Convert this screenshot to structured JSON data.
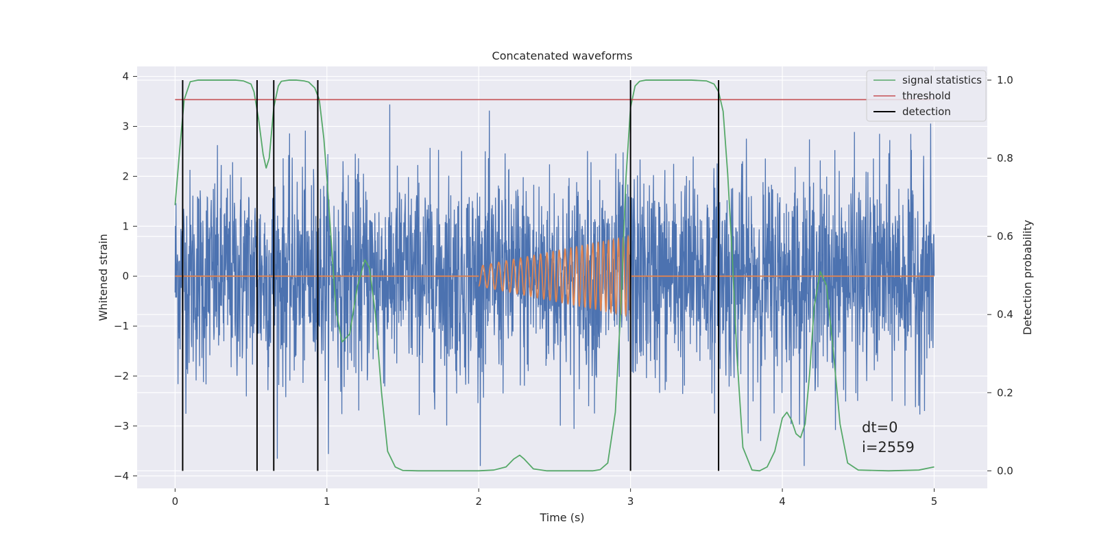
{
  "chart_data": {
    "type": "line",
    "title": "Concatenated waveforms",
    "xlabel": "Time (s)",
    "ylabel": "Whitened strain",
    "ylabel_right": "Detection probability",
    "xlim": [
      -0.25,
      5.35
    ],
    "ylim": [
      -4.25,
      4.2
    ],
    "ylim_right": [
      -0.045,
      1.035
    ],
    "x_ticks": [
      "0",
      "1",
      "2",
      "3",
      "4",
      "5"
    ],
    "y_ticks": [
      "4",
      "3",
      "2",
      "1",
      "0",
      "−1",
      "−2",
      "−3",
      "−4"
    ],
    "y_right_ticks": [
      "1.0",
      "0.8",
      "0.6",
      "0.4",
      "0.2",
      "0.0"
    ],
    "grid": true,
    "legend_position": "top-right",
    "legend": [
      "signal statistics",
      "threshold",
      "detection"
    ],
    "annotation": [
      "dt=0",
      "i=2559"
    ],
    "colors": {
      "strain": "#4c72b0",
      "template": "#dd8452",
      "signal_statistics": "#55a868",
      "threshold": "#c44e52",
      "detection": "#000000",
      "background": "#eaeaf2",
      "grid": "#ffffff"
    },
    "series": [
      {
        "name": "strain",
        "axis": "left",
        "x_range": [
          0,
          5
        ],
        "amplitude_typical": 2.5,
        "amplitude_max": 3.8
      },
      {
        "name": "template",
        "axis": "left",
        "x_range": [
          2.0,
          3.0
        ],
        "note": "chirp, amplitude rising from 0.2 to 0.8",
        "amplitude_start": 0.2,
        "amplitude_end": 0.8
      },
      {
        "name": "signal statistics",
        "axis": "right",
        "x": [
          0.0,
          0.03,
          0.06,
          0.1,
          0.15,
          0.2,
          0.3,
          0.4,
          0.45,
          0.5,
          0.52,
          0.55,
          0.58,
          0.6,
          0.62,
          0.65,
          0.68,
          0.7,
          0.75,
          0.8,
          0.85,
          0.88,
          0.92,
          0.95,
          0.98,
          1.0,
          1.03,
          1.06,
          1.1,
          1.15,
          1.2,
          1.25,
          1.28,
          1.32,
          1.36,
          1.4,
          1.45,
          1.5,
          1.6,
          1.8,
          2.0,
          2.1,
          2.18,
          2.23,
          2.27,
          2.3,
          2.36,
          2.45,
          2.6,
          2.75,
          2.8,
          2.85,
          2.9,
          2.94,
          2.97,
          3.0,
          3.03,
          3.06,
          3.1,
          3.2,
          3.4,
          3.5,
          3.55,
          3.58,
          3.61,
          3.64,
          3.67,
          3.7,
          3.74,
          3.8,
          3.85,
          3.9,
          3.95,
          4.0,
          4.03,
          4.06,
          4.09,
          4.12,
          4.15,
          4.18,
          4.21,
          4.25,
          4.29,
          4.33,
          4.38,
          4.43,
          4.5,
          4.7,
          4.9,
          5.0
        ],
        "y": [
          0.68,
          0.82,
          0.95,
          0.996,
          1.0,
          1.0,
          1.0,
          1.0,
          0.998,
          0.99,
          0.97,
          0.9,
          0.81,
          0.775,
          0.8,
          0.93,
          0.985,
          0.997,
          1.0,
          1.0,
          0.998,
          0.995,
          0.98,
          0.95,
          0.85,
          0.75,
          0.58,
          0.41,
          0.33,
          0.35,
          0.47,
          0.54,
          0.52,
          0.4,
          0.2,
          0.05,
          0.01,
          0.001,
          0.0,
          0.0,
          0.0,
          0.002,
          0.01,
          0.03,
          0.04,
          0.03,
          0.005,
          0.0,
          0.0,
          0.0,
          0.003,
          0.02,
          0.15,
          0.45,
          0.75,
          0.93,
          0.985,
          0.997,
          1.0,
          1.0,
          1.0,
          0.998,
          0.99,
          0.97,
          0.92,
          0.76,
          0.55,
          0.3,
          0.06,
          0.002,
          0.0,
          0.01,
          0.05,
          0.135,
          0.15,
          0.13,
          0.095,
          0.085,
          0.12,
          0.25,
          0.42,
          0.51,
          0.475,
          0.33,
          0.12,
          0.02,
          0.002,
          0.0,
          0.002,
          0.01
        ]
      },
      {
        "name": "threshold",
        "axis": "right",
        "x": [
          0,
          5
        ],
        "y": [
          0.95,
          0.95
        ]
      },
      {
        "name": "detection",
        "axis": "right",
        "x_positions": [
          0.05,
          0.54,
          0.65,
          0.94,
          3.0,
          3.58
        ],
        "y_range": [
          0.0,
          1.0
        ]
      }
    ]
  }
}
